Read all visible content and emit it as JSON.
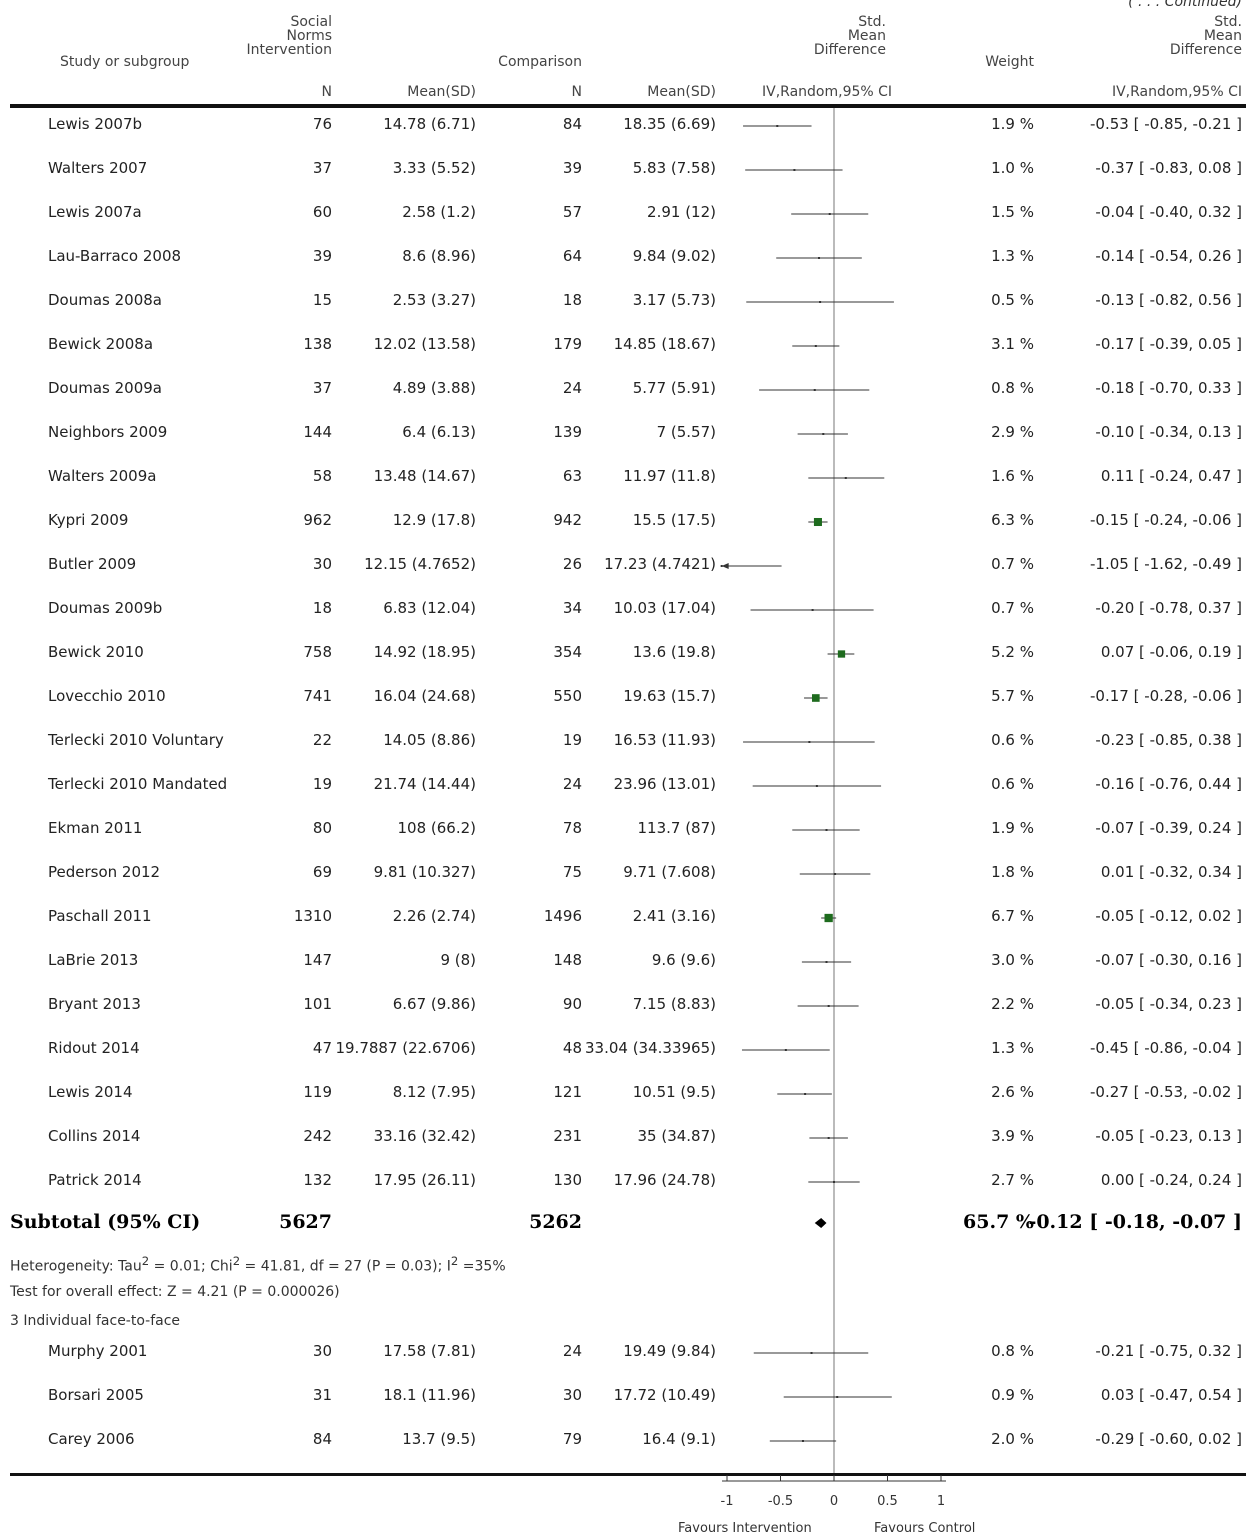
{
  "continued": "( . . . Continued)",
  "headers": {
    "study": "Study or subgroup",
    "si_line1": "Social",
    "si_line2": "Norms",
    "si_line3": "Intervention",
    "comparison": "Comparison",
    "smd_line1": "Std.",
    "smd_line2": "Mean",
    "smd_line3": "Difference",
    "weight": "Weight",
    "smd2_line1": "Std.",
    "smd2_line2": "Mean",
    "smd2_line3": "Difference",
    "n1": "N",
    "mean1": "Mean(SD)",
    "n2": "N",
    "mean2": "Mean(SD)",
    "method": "IV,Random,95% CI",
    "method2": "IV,Random,95% CI"
  },
  "rows": [
    {
      "study": "Lewis 2007b",
      "n1": "76",
      "m1": "14.78 (6.71)",
      "n2": "84",
      "m2": "18.35 (6.69)",
      "weight": "1.9 %",
      "ci": "-0.53 [ -0.85, -0.21 ]"
    },
    {
      "study": "Walters 2007",
      "n1": "37",
      "m1": "3.33 (5.52)",
      "n2": "39",
      "m2": "5.83 (7.58)",
      "weight": "1.0 %",
      "ci": "-0.37 [ -0.83, 0.08 ]"
    },
    {
      "study": "Lewis 2007a",
      "n1": "60",
      "m1": "2.58 (1.2)",
      "n2": "57",
      "m2": "2.91 (12)",
      "weight": "1.5 %",
      "ci": "-0.04 [ -0.40, 0.32 ]"
    },
    {
      "study": "Lau-Barraco 2008",
      "n1": "39",
      "m1": "8.6 (8.96)",
      "n2": "64",
      "m2": "9.84 (9.02)",
      "weight": "1.3 %",
      "ci": "-0.14 [ -0.54, 0.26 ]"
    },
    {
      "study": "Doumas 2008a",
      "n1": "15",
      "m1": "2.53 (3.27)",
      "n2": "18",
      "m2": "3.17 (5.73)",
      "weight": "0.5 %",
      "ci": "-0.13 [ -0.82, 0.56 ]"
    },
    {
      "study": "Bewick 2008a",
      "n1": "138",
      "m1": "12.02 (13.58)",
      "n2": "179",
      "m2": "14.85 (18.67)",
      "weight": "3.1 %",
      "ci": "-0.17 [ -0.39, 0.05 ]"
    },
    {
      "study": "Doumas 2009a",
      "n1": "37",
      "m1": "4.89 (3.88)",
      "n2": "24",
      "m2": "5.77 (5.91)",
      "weight": "0.8 %",
      "ci": "-0.18 [ -0.70, 0.33 ]"
    },
    {
      "study": "Neighbors 2009",
      "n1": "144",
      "m1": "6.4 (6.13)",
      "n2": "139",
      "m2": "7 (5.57)",
      "weight": "2.9 %",
      "ci": "-0.10 [ -0.34, 0.13 ]"
    },
    {
      "study": "Walters 2009a",
      "n1": "58",
      "m1": "13.48 (14.67)",
      "n2": "63",
      "m2": "11.97 (11.8)",
      "weight": "1.6 %",
      "ci": "0.11 [ -0.24, 0.47 ]"
    },
    {
      "study": "Kypri 2009",
      "n1": "962",
      "m1": "12.9 (17.8)",
      "n2": "942",
      "m2": "15.5 (17.5)",
      "weight": "6.3 %",
      "ci": "-0.15 [ -0.24, -0.06 ]"
    },
    {
      "study": "Butler 2009",
      "n1": "30",
      "m1": "12.15 (4.7652)",
      "n2": "26",
      "m2": "17.23 (4.7421)",
      "weight": "0.7 %",
      "ci": "-1.05 [ -1.62, -0.49 ]"
    },
    {
      "study": "Doumas 2009b",
      "n1": "18",
      "m1": "6.83 (12.04)",
      "n2": "34",
      "m2": "10.03 (17.04)",
      "weight": "0.7 %",
      "ci": "-0.20 [ -0.78, 0.37 ]"
    },
    {
      "study": "Bewick 2010",
      "n1": "758",
      "m1": "14.92 (18.95)",
      "n2": "354",
      "m2": "13.6 (19.8)",
      "weight": "5.2 %",
      "ci": "0.07 [ -0.06, 0.19 ]"
    },
    {
      "study": "Lovecchio 2010",
      "n1": "741",
      "m1": "16.04 (24.68)",
      "n2": "550",
      "m2": "19.63 (15.7)",
      "weight": "5.7 %",
      "ci": "-0.17 [ -0.28, -0.06 ]"
    },
    {
      "study": "Terlecki 2010 Voluntary",
      "n1": "22",
      "m1": "14.05 (8.86)",
      "n2": "19",
      "m2": "16.53 (11.93)",
      "weight": "0.6 %",
      "ci": "-0.23 [ -0.85, 0.38 ]"
    },
    {
      "study": "Terlecki 2010 Mandated",
      "n1": "19",
      "m1": "21.74 (14.44)",
      "n2": "24",
      "m2": "23.96 (13.01)",
      "weight": "0.6 %",
      "ci": "-0.16 [ -0.76, 0.44 ]"
    },
    {
      "study": "Ekman 2011",
      "n1": "80",
      "m1": "108 (66.2)",
      "n2": "78",
      "m2": "113.7 (87)",
      "weight": "1.9 %",
      "ci": "-0.07 [ -0.39, 0.24 ]"
    },
    {
      "study": "Pederson 2012",
      "n1": "69",
      "m1": "9.81 (10.327)",
      "n2": "75",
      "m2": "9.71 (7.608)",
      "weight": "1.8 %",
      "ci": "0.01 [ -0.32, 0.34 ]"
    },
    {
      "study": "Paschall 2011",
      "n1": "1310",
      "m1": "2.26 (2.74)",
      "n2": "1496",
      "m2": "2.41 (3.16)",
      "weight": "6.7 %",
      "ci": "-0.05 [ -0.12, 0.02 ]"
    },
    {
      "study": "LaBrie 2013",
      "n1": "147",
      "m1": "9 (8)",
      "n2": "148",
      "m2": "9.6 (9.6)",
      "weight": "3.0 %",
      "ci": "-0.07 [ -0.30, 0.16 ]"
    },
    {
      "study": "Bryant 2013",
      "n1": "101",
      "m1": "6.67 (9.86)",
      "n2": "90",
      "m2": "7.15 (8.83)",
      "weight": "2.2 %",
      "ci": "-0.05 [ -0.34, 0.23 ]"
    },
    {
      "study": "Ridout 2014",
      "n1": "47",
      "m1": "19.7887 (22.6706)",
      "n2": "48",
      "m2": "33.04 (34.33965)",
      "weight": "1.3 %",
      "ci": "-0.45 [ -0.86, -0.04 ]"
    },
    {
      "study": "Lewis 2014",
      "n1": "119",
      "m1": "8.12 (7.95)",
      "n2": "121",
      "m2": "10.51 (9.5)",
      "weight": "2.6 %",
      "ci": "-0.27 [ -0.53, -0.02 ]"
    },
    {
      "study": "Collins 2014",
      "n1": "242",
      "m1": "33.16 (32.42)",
      "n2": "231",
      "m2": "35 (34.87)",
      "weight": "3.9 %",
      "ci": "-0.05 [ -0.23, 0.13 ]"
    },
    {
      "study": "Patrick 2014",
      "n1": "132",
      "m1": "17.95 (26.11)",
      "n2": "130",
      "m2": "17.96 (24.78)",
      "weight": "2.7 %",
      "ci": "0.00 [ -0.24, 0.24 ]"
    }
  ],
  "subtotal": {
    "label": "Subtotal (95% CI)",
    "n1": "5627",
    "n2": "5262",
    "weight": "65.7 %",
    "ci": "-0.12 [ -0.18, -0.07 ]"
  },
  "heterogeneity": {
    "prefix": "Heterogeneity: Tau",
    "sup1": "2",
    "mid": " = 0.01; Chi",
    "sup2": "2",
    "mid2": " = 41.81, df = 27 (P = 0.03); I",
    "sup3": "2",
    "tail": " =35%"
  },
  "overall_effect": "Test for overall effect: Z = 4.21 (P = 0.000026)",
  "group3_label": "3 Individual face-to-face",
  "rows2": [
    {
      "study": "Murphy  2001",
      "n1": "30",
      "m1": "17.58 (7.81)",
      "n2": "24",
      "m2": "19.49 (9.84)",
      "weight": "0.8 %",
      "ci": "-0.21 [ -0.75, 0.32 ]"
    },
    {
      "study": "Borsari 2005",
      "n1": "31",
      "m1": "18.1 (11.96)",
      "n2": "30",
      "m2": "17.72 (10.49)",
      "weight": "0.9 %",
      "ci": "0.03 [ -0.47, 0.54 ]"
    },
    {
      "study": "Carey   2006",
      "n1": "84",
      "m1": "13.7 (9.5)",
      "n2": "79",
      "m2": "16.4 (9.1)",
      "weight": "2.0 %",
      "ci": "-0.29 [ -0.60, 0.02 ]"
    }
  ],
  "axis": {
    "ticks": [
      "-1",
      "-0.5",
      "0",
      "0.5",
      "1"
    ],
    "left_label": "Favours Intervention",
    "right_label": "Favours Control"
  },
  "colors": {
    "marker": "#1e6b1e",
    "line": "#333333",
    "zero": "#777777"
  },
  "chart_data": {
    "type": "scatter",
    "subtype": "forest plot",
    "xlim": [
      -1,
      1
    ],
    "xticks": [
      -1,
      -0.5,
      0,
      0.5,
      1
    ],
    "effects": [
      {
        "study": "Lewis 2007b",
        "smd": -0.53,
        "lo": -0.85,
        "hi": -0.21,
        "weight": 1.9
      },
      {
        "study": "Walters 2007",
        "smd": -0.37,
        "lo": -0.83,
        "hi": 0.08,
        "weight": 1.0
      },
      {
        "study": "Lewis 2007a",
        "smd": -0.04,
        "lo": -0.4,
        "hi": 0.32,
        "weight": 1.5
      },
      {
        "study": "Lau-Barraco 2008",
        "smd": -0.14,
        "lo": -0.54,
        "hi": 0.26,
        "weight": 1.3
      },
      {
        "study": "Doumas 2008a",
        "smd": -0.13,
        "lo": -0.82,
        "hi": 0.56,
        "weight": 0.5
      },
      {
        "study": "Bewick 2008a",
        "smd": -0.17,
        "lo": -0.39,
        "hi": 0.05,
        "weight": 3.1
      },
      {
        "study": "Doumas 2009a",
        "smd": -0.18,
        "lo": -0.7,
        "hi": 0.33,
        "weight": 0.8
      },
      {
        "study": "Neighbors 2009",
        "smd": -0.1,
        "lo": -0.34,
        "hi": 0.13,
        "weight": 2.9
      },
      {
        "study": "Walters 2009a",
        "smd": 0.11,
        "lo": -0.24,
        "hi": 0.47,
        "weight": 1.6
      },
      {
        "study": "Kypri 2009",
        "smd": -0.15,
        "lo": -0.24,
        "hi": -0.06,
        "weight": 6.3
      },
      {
        "study": "Butler 2009",
        "smd": -1.05,
        "lo": -1.62,
        "hi": -0.49,
        "weight": 0.7
      },
      {
        "study": "Doumas 2009b",
        "smd": -0.2,
        "lo": -0.78,
        "hi": 0.37,
        "weight": 0.7
      },
      {
        "study": "Bewick 2010",
        "smd": 0.07,
        "lo": -0.06,
        "hi": 0.19,
        "weight": 5.2
      },
      {
        "study": "Lovecchio 2010",
        "smd": -0.17,
        "lo": -0.28,
        "hi": -0.06,
        "weight": 5.7
      },
      {
        "study": "Terlecki 2010 Voluntary",
        "smd": -0.23,
        "lo": -0.85,
        "hi": 0.38,
        "weight": 0.6
      },
      {
        "study": "Terlecki 2010 Mandated",
        "smd": -0.16,
        "lo": -0.76,
        "hi": 0.44,
        "weight": 0.6
      },
      {
        "study": "Ekman 2011",
        "smd": -0.07,
        "lo": -0.39,
        "hi": 0.24,
        "weight": 1.9
      },
      {
        "study": "Pederson 2012",
        "smd": 0.01,
        "lo": -0.32,
        "hi": 0.34,
        "weight": 1.8
      },
      {
        "study": "Paschall 2011",
        "smd": -0.05,
        "lo": -0.12,
        "hi": 0.02,
        "weight": 6.7
      },
      {
        "study": "LaBrie 2013",
        "smd": -0.07,
        "lo": -0.3,
        "hi": 0.16,
        "weight": 3.0
      },
      {
        "study": "Bryant 2013",
        "smd": -0.05,
        "lo": -0.34,
        "hi": 0.23,
        "weight": 2.2
      },
      {
        "study": "Ridout 2014",
        "smd": -0.45,
        "lo": -0.86,
        "hi": -0.04,
        "weight": 1.3
      },
      {
        "study": "Lewis 2014",
        "smd": -0.27,
        "lo": -0.53,
        "hi": -0.02,
        "weight": 2.6
      },
      {
        "study": "Collins 2014",
        "smd": -0.05,
        "lo": -0.23,
        "hi": 0.13,
        "weight": 3.9
      },
      {
        "study": "Patrick 2014",
        "smd": 0.0,
        "lo": -0.24,
        "hi": 0.24,
        "weight": 2.7
      }
    ],
    "subtotal": {
      "smd": -0.12,
      "lo": -0.18,
      "hi": -0.07,
      "weight": 65.7
    },
    "effects2": [
      {
        "study": "Murphy  2001",
        "smd": -0.21,
        "lo": -0.75,
        "hi": 0.32,
        "weight": 0.8
      },
      {
        "study": "Borsari 2005",
        "smd": 0.03,
        "lo": -0.47,
        "hi": 0.54,
        "weight": 0.9
      },
      {
        "study": "Carey   2006",
        "smd": -0.29,
        "lo": -0.6,
        "hi": 0.02,
        "weight": 2.0
      }
    ]
  }
}
